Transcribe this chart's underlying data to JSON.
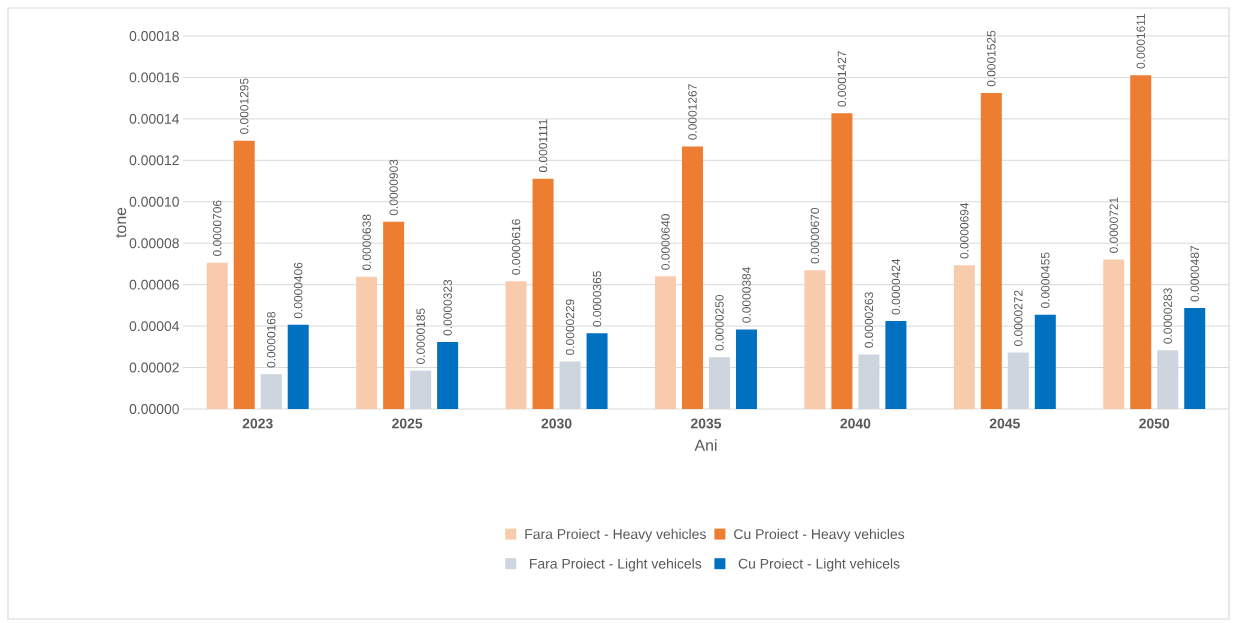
{
  "chart_data": {
    "type": "bar",
    "xlabel": "Ani",
    "ylabel": "tone",
    "categories": [
      "2023",
      "2025",
      "2030",
      "2035",
      "2040",
      "2045",
      "2050"
    ],
    "series": [
      {
        "name": "Fara Proiect - Heavy vehicles",
        "color": "#f8cbad",
        "values": [
          7.06e-05,
          6.38e-05,
          6.16e-05,
          6.4e-05,
          6.7e-05,
          6.94e-05,
          7.21e-05
        ],
        "value_labels": [
          "0.0000706",
          "0.0000638",
          "0.0000616",
          "0.0000640",
          "0.0000670",
          "0.0000694",
          "0.0000721"
        ]
      },
      {
        "name": "Cu Proiect - Heavy vehicles",
        "color": "#ed7d31",
        "values": [
          0.0001295,
          9.03e-05,
          0.0001111,
          0.0001267,
          0.0001427,
          0.0001525,
          0.0001611
        ],
        "value_labels": [
          "0.0001295",
          "0.0000903",
          "0.0001111",
          "0.0001267",
          "0.0001427",
          "0.0001525",
          "0.0001611"
        ]
      },
      {
        "name": "Fara Proiect - Light vehicels",
        "color": "#cdd5df",
        "values": [
          1.68e-05,
          1.85e-05,
          2.29e-05,
          2.5e-05,
          2.63e-05,
          2.72e-05,
          2.83e-05
        ],
        "value_labels": [
          "0.0000168",
          "0.0000185",
          "0.0000229",
          "0.0000250",
          "0.0000263",
          "0.0000272",
          "0.0000283"
        ]
      },
      {
        "name": "Cu Proiect - Light vehicels",
        "color": "#0070c0",
        "values": [
          4.06e-05,
          3.23e-05,
          3.65e-05,
          3.84e-05,
          4.24e-05,
          4.55e-05,
          4.87e-05
        ],
        "value_labels": [
          "0.0000406",
          "0.0000323",
          "0.0000365",
          "0.0000384",
          "0.0000424",
          "0.0000455",
          "0.0000487"
        ]
      }
    ],
    "ylim": [
      0,
      0.00018
    ],
    "yticks": [
      {
        "value": 0,
        "label": "0.00000"
      },
      {
        "value": 2e-05,
        "label": "0.00002"
      },
      {
        "value": 4e-05,
        "label": "0.00004"
      },
      {
        "value": 6e-05,
        "label": "0.00006"
      },
      {
        "value": 8e-05,
        "label": "0.00008"
      },
      {
        "value": 0.0001,
        "label": "0.00010"
      },
      {
        "value": 0.00012,
        "label": "0.00012"
      },
      {
        "value": 0.00014,
        "label": "0.00014"
      },
      {
        "value": 0.00016,
        "label": "0.00016"
      },
      {
        "value": 0.00018,
        "label": "0.00018"
      }
    ],
    "grid": "y",
    "legend": "bottom"
  }
}
